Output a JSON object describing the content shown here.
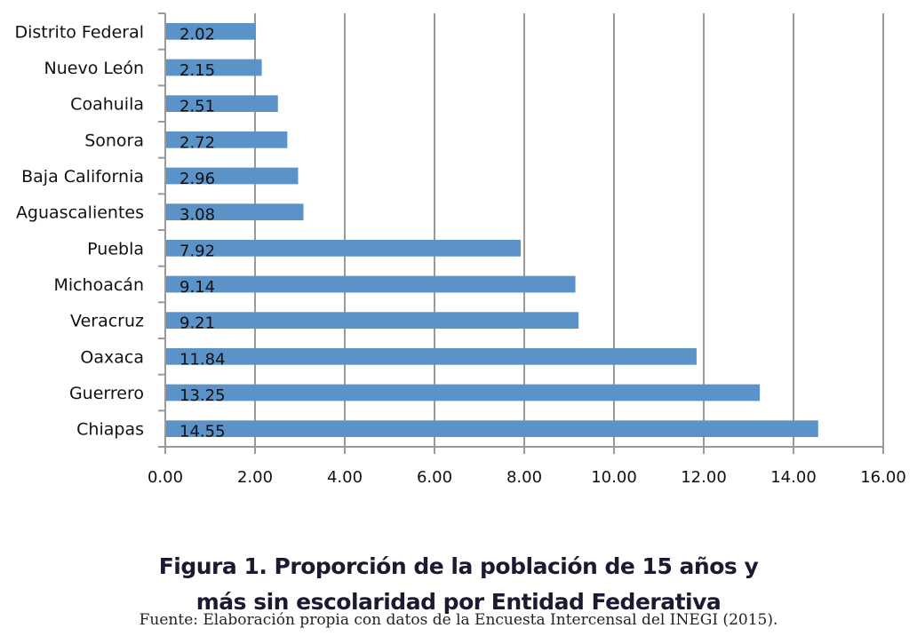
{
  "chart_data": {
    "type": "bar",
    "orientation": "horizontal",
    "categories": [
      "Distrito Federal",
      "Nuevo León",
      "Coahuila",
      "Sonora",
      "Baja California",
      "Aguascalientes",
      "Puebla",
      "Michoacán",
      "Veracruz",
      "Oaxaca",
      "Guerrero",
      "Chiapas"
    ],
    "values": [
      2.02,
      2.15,
      2.51,
      2.72,
      2.96,
      3.08,
      7.92,
      9.14,
      9.21,
      11.84,
      13.25,
      14.55
    ],
    "value_labels": [
      "2.02",
      "2.15",
      "2.51",
      "2.72",
      "2.96",
      "3.08",
      "7.92",
      "9.14",
      "9.21",
      "11.84",
      "13.25",
      "14.55"
    ],
    "xlim": [
      0,
      16
    ],
    "xticks": [
      "0.00",
      "2.00",
      "4.00",
      "6.00",
      "8.00",
      "10.00",
      "12.00",
      "14.00",
      "16.00"
    ],
    "grid": true,
    "bar_color": "#5b93c8",
    "grid_color": "#9a9a9a",
    "title": "Figura 1. Proporción de la población de 15 años y más sin escolaridad por Entidad Federativa",
    "xlabel": "",
    "ylabel": ""
  },
  "caption": {
    "title_line1": "Figura 1. Proporción de la población de 15 años y",
    "title_line2": "más sin escolaridad por Entidad Federativa",
    "source": "Fuente: Elaboración propia con datos de la Encuesta Intercensal del INEGI (2015)."
  }
}
